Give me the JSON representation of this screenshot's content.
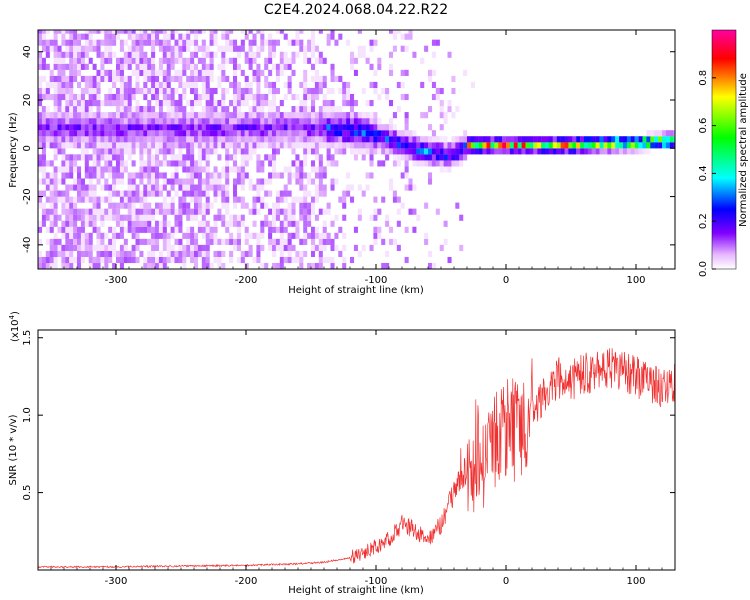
{
  "title": "C2E4.2024.068.04.22.R22",
  "chart_data": [
    {
      "type": "heatmap",
      "title": "C2E4.2024.068.04.22.R22",
      "xlabel": "Height of straight line (km)",
      "ylabel": "Frequency (Hz)",
      "xlim": [
        -360,
        130
      ],
      "ylim": [
        -50,
        49
      ],
      "x_ticks": [
        "-300",
        "-200",
        "-100",
        "0",
        "100"
      ],
      "y_ticks": [
        "-40",
        "-20",
        "0",
        "20",
        "40"
      ],
      "colorbar": {
        "label": "Normalized spectral amplitude",
        "range": [
          0.0,
          1.0
        ],
        "ticks": [
          "0.0",
          "0.2",
          "0.4",
          "0.6",
          "0.8"
        ],
        "colormap": [
          "#ffffff",
          "#e8b8ff",
          "#8000ff",
          "#0000ff",
          "#00ffff",
          "#00ff00",
          "#ffff00",
          "#ff0000",
          "#ff00a0"
        ]
      },
      "ridge": [
        {
          "x": -230,
          "y": 7
        },
        {
          "x": -180,
          "y": 7
        },
        {
          "x": -130,
          "y": 7
        },
        {
          "x": -100,
          "y": 4
        },
        {
          "x": -80,
          "y": 0
        },
        {
          "x": -60,
          "y": -3
        },
        {
          "x": -45,
          "y": -4
        },
        {
          "x": -30,
          "y": 0
        },
        {
          "x": 0,
          "y": 0
        },
        {
          "x": 50,
          "y": 0
        },
        {
          "x": 100,
          "y": 1
        },
        {
          "x": 130,
          "y": 2
        }
      ]
    },
    {
      "type": "line",
      "xlabel": "Height of straight line (km)",
      "ylabel": "SNR (10 * v/v)",
      "y_multiplier": "(x10",
      "y_multiplier_exp": "4",
      "xlim": [
        -360,
        130
      ],
      "ylim": [
        0.0,
        1.55
      ],
      "x_ticks": [
        "-300",
        "-200",
        "-100",
        "0",
        "100"
      ],
      "y_ticks": [
        "0.5",
        "1.0",
        "1.5"
      ],
      "series": [
        {
          "color": "#f03030",
          "x": [
            -360,
            -300,
            -250,
            -200,
            -160,
            -140,
            -120,
            -100,
            -90,
            -80,
            -70,
            -60,
            -50,
            -40,
            -30,
            -20,
            -10,
            0,
            10,
            20,
            30,
            40,
            50,
            60,
            70,
            80,
            90,
            100,
            110,
            120,
            130
          ],
          "y": [
            0.02,
            0.02,
            0.025,
            0.03,
            0.04,
            0.05,
            0.08,
            0.15,
            0.2,
            0.3,
            0.25,
            0.2,
            0.3,
            0.5,
            0.65,
            0.6,
            0.85,
            0.95,
            0.9,
            1.0,
            1.15,
            1.25,
            1.22,
            1.28,
            1.27,
            1.3,
            1.28,
            1.25,
            1.2,
            1.18,
            1.2
          ]
        }
      ],
      "grid": false,
      "legend": "none"
    }
  ]
}
